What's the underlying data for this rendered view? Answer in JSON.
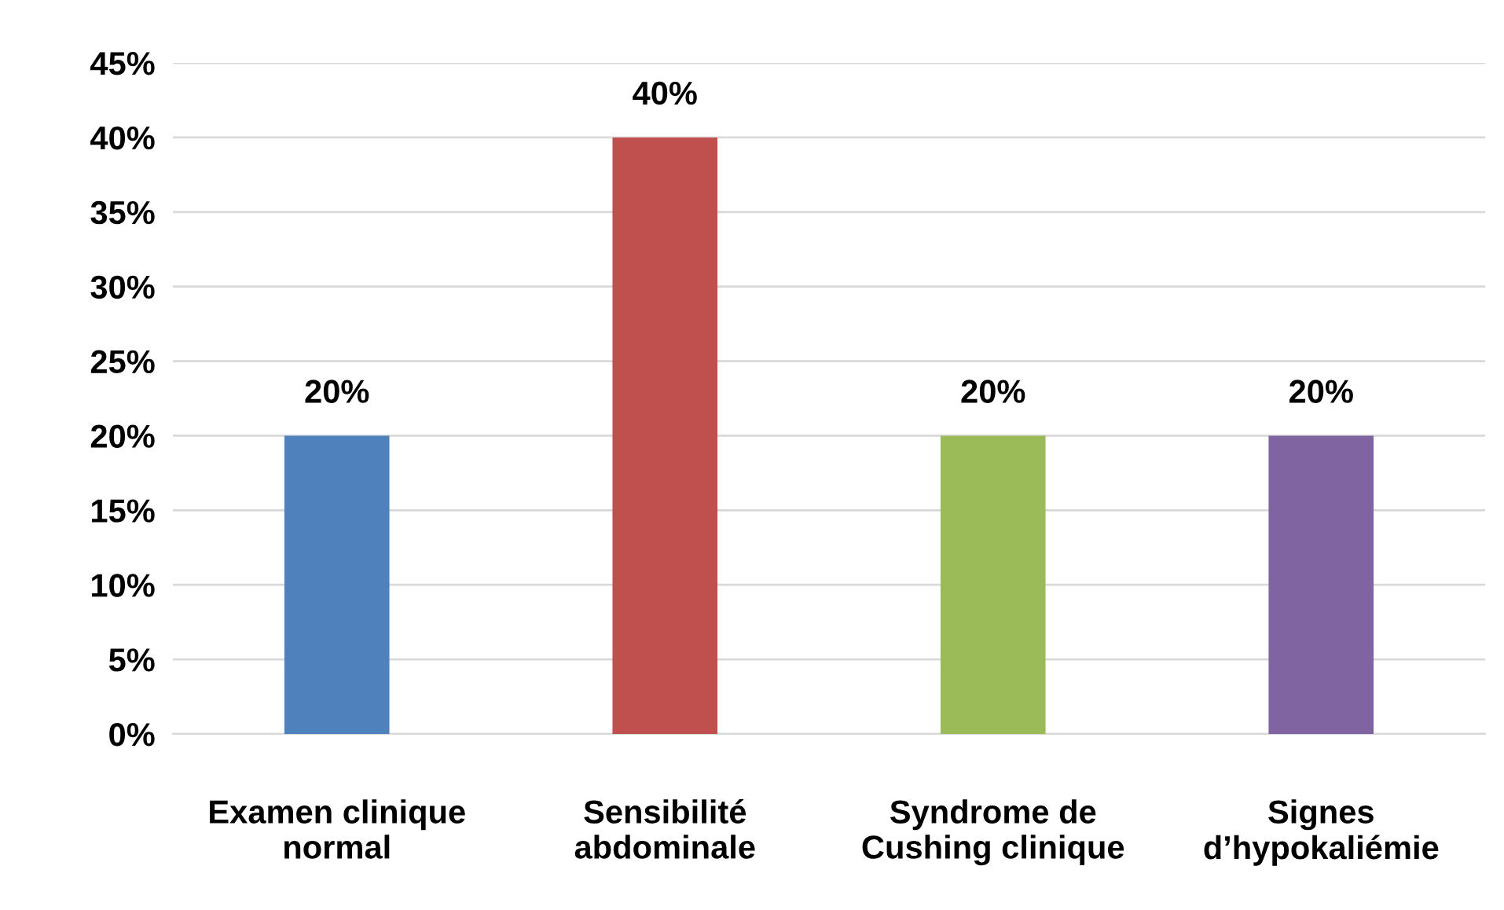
{
  "chart_data": {
    "type": "bar",
    "categories": [
      "Examen clinique\nnormal",
      "Sensibilité\nabdominale",
      "Syndrome de\nCushing clinique",
      "Signes\nd’hypokaliémie"
    ],
    "values": [
      20,
      40,
      20,
      20
    ],
    "colors": [
      "#4f81bd",
      "#c0504d",
      "#9bbb59",
      "#8064a2"
    ],
    "value_labels": [
      "20%",
      "40%",
      "20%",
      "20%"
    ],
    "ylim": [
      0,
      45
    ],
    "yticks": [
      {
        "value": 0,
        "label": "0%"
      },
      {
        "value": 5,
        "label": "5%"
      },
      {
        "value": 10,
        "label": "10%"
      },
      {
        "value": 15,
        "label": "15%"
      },
      {
        "value": 20,
        "label": "20%"
      },
      {
        "value": 25,
        "label": "25%"
      },
      {
        "value": 30,
        "label": "30%"
      },
      {
        "value": 35,
        "label": "35%"
      },
      {
        "value": 40,
        "label": "40%"
      },
      {
        "value": 45,
        "label": "45%"
      }
    ],
    "grid": "y",
    "legend": false
  }
}
